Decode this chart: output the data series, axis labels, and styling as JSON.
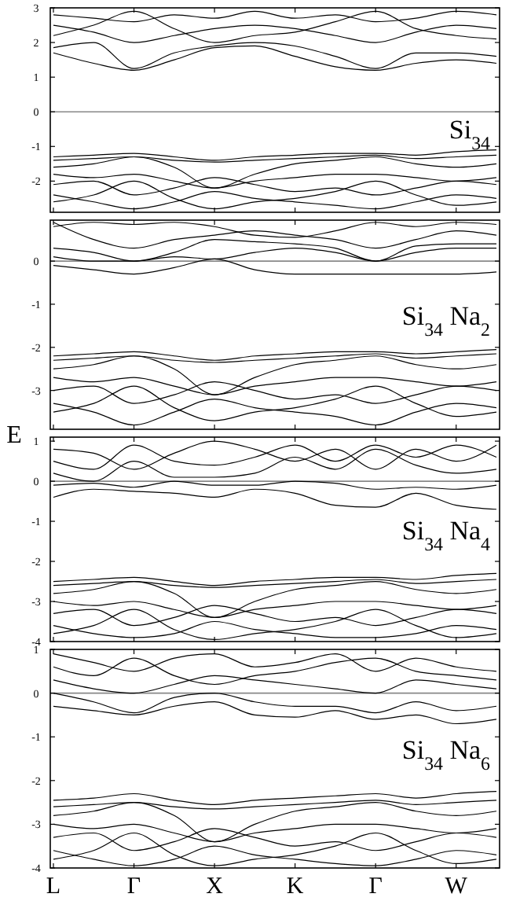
{
  "chart_data": [
    {
      "type": "line",
      "color": "#000000",
      "annotations": [
        "Si$_{34}$"
      ],
      "tick_labels": "y",
      "ref_lines": [
        {
          "axis": "y",
          "value": 0,
          "color": "#888888"
        }
      ],
      "categories": [
        null,
        null,
        null,
        null,
        null,
        null,
        null,
        null,
        null,
        null,
        null,
        null
      ],
      "ylim": [
        -2.9,
        3
      ],
      "yticks": [
        -2,
        -1,
        0,
        1,
        2,
        3
      ],
      "series": [
        {
          "values": [
            1.7,
            1.4,
            1.2,
            1.5,
            1.85,
            1.9,
            1.6,
            1.3,
            1.2,
            1.4,
            1.5,
            1.4
          ]
        },
        {
          "values": [
            1.85,
            2.0,
            1.25,
            1.7,
            1.9,
            2.0,
            1.9,
            1.6,
            1.25,
            1.7,
            1.7,
            1.6
          ]
        },
        {
          "values": [
            2.2,
            2.5,
            2.9,
            2.4,
            2.0,
            2.2,
            2.3,
            2.6,
            2.9,
            2.4,
            2.2,
            2.1
          ]
        },
        {
          "values": [
            2.5,
            2.3,
            2.0,
            2.2,
            2.4,
            2.5,
            2.4,
            2.2,
            2.0,
            2.3,
            2.5,
            2.4
          ]
        },
        {
          "values": [
            2.8,
            2.7,
            2.6,
            2.8,
            2.7,
            2.9,
            2.7,
            2.8,
            2.6,
            2.7,
            2.9,
            2.8
          ]
        },
        {
          "values": [
            -1.3,
            -1.25,
            -1.2,
            -1.3,
            -1.4,
            -1.3,
            -1.25,
            -1.2,
            -1.2,
            -1.25,
            -1.15,
            -1.1
          ]
        },
        {
          "values": [
            -1.4,
            -1.35,
            -1.3,
            -1.4,
            -1.45,
            -1.4,
            -1.35,
            -1.3,
            -1.25,
            -1.35,
            -1.3,
            -1.25
          ]
        },
        {
          "values": [
            -1.6,
            -1.5,
            -1.3,
            -1.6,
            -2.2,
            -1.8,
            -1.5,
            -1.4,
            -1.3,
            -1.5,
            -1.6,
            -1.5
          ]
        },
        {
          "values": [
            -1.8,
            -1.9,
            -1.8,
            -2.0,
            -2.2,
            -2.0,
            -1.9,
            -1.8,
            -1.8,
            -1.9,
            -2.0,
            -1.9
          ]
        },
        {
          "values": [
            -2.1,
            -2.0,
            -2.4,
            -2.2,
            -1.9,
            -2.1,
            -2.3,
            -2.2,
            -2.4,
            -2.2,
            -2.0,
            -2.1
          ]
        },
        {
          "values": [
            -2.4,
            -2.6,
            -2.8,
            -2.6,
            -2.3,
            -2.5,
            -2.6,
            -2.7,
            -2.8,
            -2.6,
            -2.4,
            -2.5
          ]
        },
        {
          "values": [
            -2.6,
            -2.4,
            -2.0,
            -2.5,
            -2.8,
            -2.6,
            -2.5,
            -2.3,
            -2.0,
            -2.4,
            -2.7,
            -2.6
          ]
        }
      ]
    },
    {
      "type": "line",
      "color": "#000000",
      "annotations": [
        "Si$_{34}$ Na$_{2}$"
      ],
      "ylabel": "E",
      "tick_labels": "y",
      "ref_lines": [
        {
          "axis": "y",
          "value": 0,
          "color": "#888888"
        }
      ],
      "categories": [
        null,
        null,
        null,
        null,
        null,
        null,
        null,
        null,
        null,
        null,
        null,
        null
      ],
      "ylim": [
        -3.9,
        0.95
      ],
      "yticks": [
        -3,
        -2,
        -1,
        0
      ],
      "series": [
        {
          "values": [
            -0.1,
            -0.2,
            -0.3,
            -0.15,
            0.05,
            -0.2,
            -0.3,
            -0.3,
            -0.3,
            -0.3,
            -0.3,
            -0.25
          ]
        },
        {
          "values": [
            0.1,
            0.0,
            0.0,
            0.1,
            0.05,
            0.2,
            0.3,
            0.2,
            0.0,
            0.2,
            0.3,
            0.3
          ]
        },
        {
          "values": [
            0.3,
            0.2,
            0.0,
            0.2,
            0.5,
            0.45,
            0.4,
            0.3,
            0.0,
            0.35,
            0.4,
            0.4
          ]
        },
        {
          "values": [
            0.9,
            0.5,
            0.3,
            0.5,
            0.6,
            0.7,
            0.6,
            0.5,
            0.3,
            0.5,
            0.7,
            0.6
          ]
        },
        {
          "values": [
            0.8,
            0.9,
            0.85,
            0.9,
            0.8,
            0.6,
            0.55,
            0.7,
            0.9,
            0.8,
            0.9,
            0.85
          ]
        },
        {
          "values": [
            -2.2,
            -2.15,
            -2.1,
            -2.2,
            -2.3,
            -2.2,
            -2.15,
            -2.1,
            -2.1,
            -2.15,
            -2.1,
            -2.05
          ]
        },
        {
          "values": [
            -2.3,
            -2.25,
            -2.2,
            -2.3,
            -2.35,
            -2.3,
            -2.25,
            -2.2,
            -2.15,
            -2.25,
            -2.2,
            -2.15
          ]
        },
        {
          "values": [
            -2.5,
            -2.4,
            -2.2,
            -2.5,
            -3.1,
            -2.7,
            -2.4,
            -2.3,
            -2.2,
            -2.4,
            -2.5,
            -2.4
          ]
        },
        {
          "values": [
            -2.7,
            -2.8,
            -2.7,
            -2.9,
            -3.1,
            -2.9,
            -2.8,
            -2.7,
            -2.7,
            -2.8,
            -2.9,
            -2.8
          ]
        },
        {
          "values": [
            -3.0,
            -2.9,
            -3.3,
            -3.1,
            -2.8,
            -3.0,
            -3.2,
            -3.1,
            -3.3,
            -3.1,
            -2.9,
            -3.0
          ]
        },
        {
          "values": [
            -3.3,
            -3.5,
            -3.8,
            -3.5,
            -3.2,
            -3.4,
            -3.5,
            -3.6,
            -3.8,
            -3.5,
            -3.3,
            -3.4
          ]
        },
        {
          "values": [
            -3.5,
            -3.3,
            -2.9,
            -3.4,
            -3.7,
            -3.5,
            -3.4,
            -3.2,
            -2.9,
            -3.3,
            -3.6,
            -3.5
          ]
        }
      ]
    },
    {
      "type": "line",
      "color": "#000000",
      "annotations": [
        "Si$_{34}$ Na$_{4}$"
      ],
      "tick_labels": "y",
      "ref_lines": [
        {
          "axis": "y",
          "value": 0,
          "color": "#888888"
        }
      ],
      "categories": [
        null,
        null,
        null,
        null,
        null,
        null,
        null,
        null,
        null,
        null,
        null,
        null
      ],
      "ylim": [
        -4,
        1.1
      ],
      "yticks": [
        -4,
        -3,
        -2,
        -1,
        0,
        1
      ],
      "series": [
        {
          "values": [
            -0.4,
            -0.2,
            -0.25,
            -0.3,
            -0.4,
            -0.2,
            -0.3,
            -0.6,
            -0.65,
            -0.3,
            -0.6,
            -0.7
          ]
        },
        {
          "values": [
            -0.1,
            -0.05,
            -0.15,
            0.0,
            -0.1,
            -0.1,
            0.0,
            -0.05,
            -0.2,
            -0.15,
            -0.2,
            -0.1
          ]
        },
        {
          "values": [
            0.2,
            0.0,
            0.5,
            0.1,
            0.1,
            0.2,
            0.6,
            0.3,
            0.8,
            0.4,
            0.2,
            0.3
          ]
        },
        {
          "values": [
            0.5,
            0.3,
            0.9,
            0.5,
            0.4,
            0.6,
            0.9,
            0.5,
            0.9,
            0.6,
            0.9,
            0.6
          ]
        },
        {
          "values": [
            0.8,
            0.7,
            0.3,
            0.7,
            1.0,
            0.8,
            0.5,
            0.8,
            0.3,
            0.8,
            0.5,
            0.9
          ]
        },
        {
          "values": [
            -2.5,
            -2.45,
            -2.4,
            -2.5,
            -2.6,
            -2.5,
            -2.45,
            -2.4,
            -2.4,
            -2.45,
            -2.35,
            -2.3
          ]
        },
        {
          "values": [
            -2.6,
            -2.55,
            -2.5,
            -2.6,
            -2.65,
            -2.6,
            -2.55,
            -2.5,
            -2.45,
            -2.55,
            -2.5,
            -2.45
          ]
        },
        {
          "values": [
            -2.8,
            -2.7,
            -2.5,
            -2.8,
            -3.4,
            -3.0,
            -2.7,
            -2.6,
            -2.5,
            -2.7,
            -2.8,
            -2.7
          ]
        },
        {
          "values": [
            -3.0,
            -3.1,
            -3.0,
            -3.2,
            -3.4,
            -3.2,
            -3.1,
            -3.0,
            -3.0,
            -3.1,
            -3.2,
            -3.1
          ]
        },
        {
          "values": [
            -3.3,
            -3.2,
            -3.6,
            -3.4,
            -3.1,
            -3.3,
            -3.5,
            -3.4,
            -3.6,
            -3.4,
            -3.2,
            -3.3
          ]
        },
        {
          "values": [
            -3.6,
            -3.8,
            -3.9,
            -3.8,
            -3.5,
            -3.7,
            -3.8,
            -3.9,
            -3.9,
            -3.8,
            -3.6,
            -3.7
          ]
        },
        {
          "values": [
            -3.8,
            -3.6,
            -3.2,
            -3.7,
            -3.95,
            -3.8,
            -3.7,
            -3.5,
            -3.2,
            -3.6,
            -3.9,
            -3.8
          ]
        }
      ]
    },
    {
      "type": "line",
      "color": "#000000",
      "annotations": [
        "Si$_{34}$ Na$_{6}$"
      ],
      "ref_lines": [
        {
          "axis": "y",
          "value": 0,
          "color": "#888888"
        }
      ],
      "categories": [
        "L",
        null,
        "Γ",
        null,
        "X",
        null,
        "K",
        null,
        "Γ",
        null,
        "W",
        null
      ],
      "ylim": [
        -4,
        1
      ],
      "yticks": [
        -4,
        -3,
        -2,
        -1,
        0,
        1
      ],
      "series": [
        {
          "values": [
            -0.3,
            -0.4,
            -0.5,
            -0.3,
            -0.2,
            -0.5,
            -0.55,
            -0.4,
            -0.6,
            -0.5,
            -0.7,
            -0.6
          ]
        },
        {
          "values": [
            0.0,
            -0.2,
            -0.45,
            -0.1,
            0.0,
            -0.2,
            -0.3,
            -0.3,
            -0.45,
            -0.2,
            -0.4,
            -0.3
          ]
        },
        {
          "values": [
            0.3,
            0.1,
            0.0,
            0.2,
            0.4,
            0.3,
            0.2,
            0.1,
            0.0,
            0.3,
            0.2,
            0.1
          ]
        },
        {
          "values": [
            0.6,
            0.4,
            0.8,
            0.4,
            0.2,
            0.4,
            0.5,
            0.7,
            0.8,
            0.5,
            0.4,
            0.3
          ]
        },
        {
          "values": [
            0.9,
            0.7,
            0.5,
            0.8,
            0.9,
            0.6,
            0.7,
            0.9,
            0.5,
            0.8,
            0.6,
            0.5
          ]
        },
        {
          "values": [
            -2.45,
            -2.4,
            -2.3,
            -2.45,
            -2.55,
            -2.45,
            -2.4,
            -2.35,
            -2.3,
            -2.4,
            -2.3,
            -2.25
          ]
        },
        {
          "values": [
            -2.6,
            -2.55,
            -2.5,
            -2.6,
            -2.65,
            -2.6,
            -2.55,
            -2.5,
            -2.45,
            -2.55,
            -2.5,
            -2.45
          ]
        },
        {
          "values": [
            -2.8,
            -2.7,
            -2.5,
            -2.8,
            -3.4,
            -3.0,
            -2.7,
            -2.6,
            -2.5,
            -2.7,
            -2.8,
            -2.7
          ]
        },
        {
          "values": [
            -3.0,
            -3.1,
            -3.0,
            -3.2,
            -3.4,
            -3.2,
            -3.1,
            -3.0,
            -3.0,
            -3.1,
            -3.2,
            -3.1
          ]
        },
        {
          "values": [
            -3.3,
            -3.2,
            -3.6,
            -3.4,
            -3.1,
            -3.3,
            -3.5,
            -3.4,
            -3.6,
            -3.4,
            -3.2,
            -3.3
          ]
        },
        {
          "values": [
            -3.6,
            -3.8,
            -3.95,
            -3.8,
            -3.5,
            -3.7,
            -3.8,
            -3.9,
            -3.95,
            -3.8,
            -3.6,
            -3.7
          ]
        },
        {
          "values": [
            -3.8,
            -3.6,
            -3.2,
            -3.7,
            -3.95,
            -3.8,
            -3.7,
            -3.5,
            -3.2,
            -3.6,
            -3.9,
            -3.8
          ]
        }
      ]
    }
  ]
}
